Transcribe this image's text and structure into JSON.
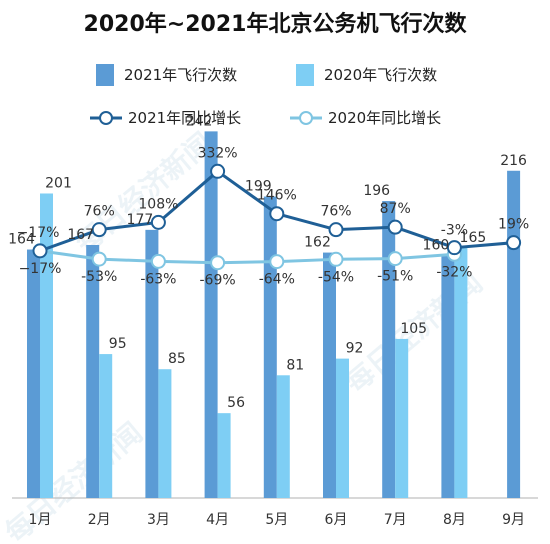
{
  "chart_data": {
    "type": "bar",
    "title": "2020年~2021年北京公务机飞行次数",
    "categories": [
      "1月",
      "2月",
      "3月",
      "4月",
      "5月",
      "6月",
      "7月",
      "8月",
      "9月"
    ],
    "series": [
      {
        "name": "2021年飞行次数",
        "type": "bar",
        "color": "#5b9bd5",
        "values": [
          164,
          167,
          177,
          242,
          199,
          162,
          196,
          160,
          216
        ]
      },
      {
        "name": "2020年飞行次数",
        "type": "bar",
        "color": "#7ecef4",
        "values": [
          201,
          95,
          85,
          56,
          81,
          92,
          105,
          165,
          null
        ]
      },
      {
        "name": "2021年同比增长",
        "type": "line",
        "color": "#1f5f96",
        "values": [
          -17,
          76,
          108,
          332,
          146,
          76,
          87,
          -3,
          19
        ],
        "labels": [
          "−17%",
          "76%",
          "108%",
          "332%",
          "146%",
          "76%",
          "87%",
          "-3%",
          "19%"
        ]
      },
      {
        "name": "2020年同比增长",
        "type": "line",
        "color": "#7fc5e2",
        "values": [
          -17,
          -53,
          -63,
          -69,
          -64,
          -54,
          -51,
          -32,
          null
        ],
        "labels": [
          "−17%",
          "-53%",
          "-63%",
          "-69%",
          "-64%",
          "-54%",
          "-51%",
          "-32%",
          ""
        ]
      }
    ],
    "legend_position": "top-center",
    "grid": false
  },
  "watermark": "每日经济新闻"
}
